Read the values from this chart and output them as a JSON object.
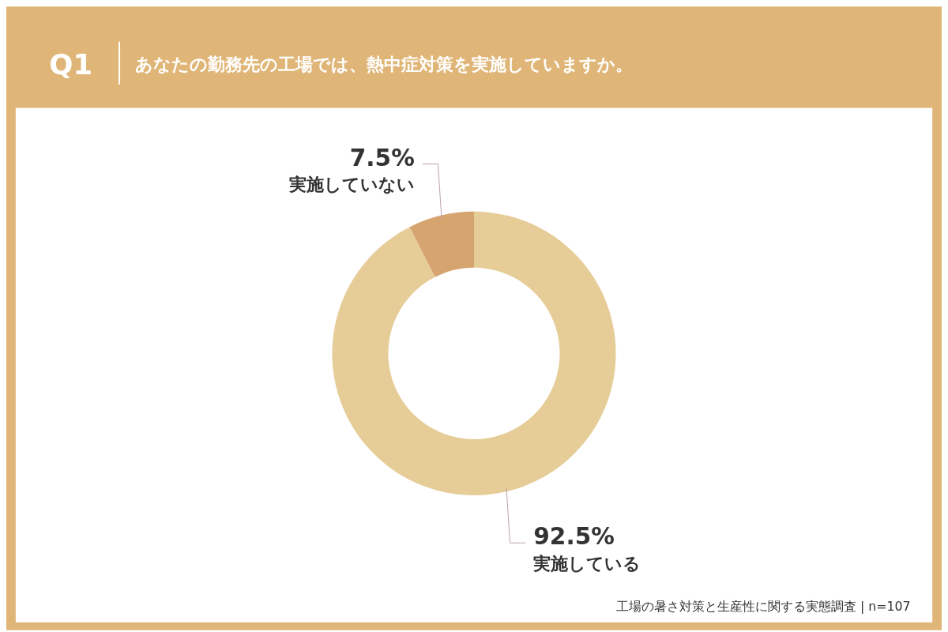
{
  "chart_data": {
    "type": "donut",
    "title": "Q1",
    "subtitle": "あなたの勤務先の工場では、熱中症対策を実施していますか。",
    "categories": [
      "実施している",
      "実施していない"
    ],
    "values": [
      92.5,
      7.5
    ],
    "value_labels": [
      "92.5%",
      "7.5%"
    ],
    "colors": [
      "#e6cd98",
      "#d6a56f"
    ],
    "annotations": [
      "工場の暑さ対策と生産性に関する実態調査 | n=107"
    ]
  }
}
